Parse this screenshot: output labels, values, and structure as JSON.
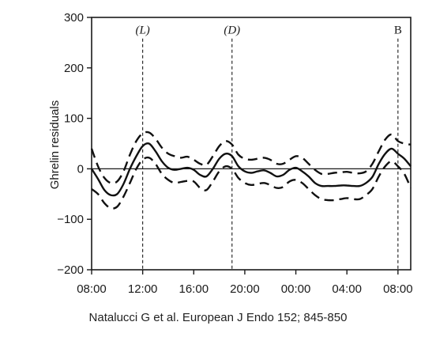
{
  "chart_data": {
    "type": "line",
    "ylabel": "Ghrelin residuals",
    "ylim": [
      -200,
      300
    ],
    "yticks": [
      "300",
      "200",
      "100",
      "0",
      "−100",
      "−200"
    ],
    "ytick_values": [
      300,
      200,
      100,
      0,
      -100,
      -200
    ],
    "xlim": [
      8,
      33
    ],
    "xticks": [
      "08:00",
      "12:00",
      "16:00",
      "20:00",
      "00:00",
      "04:00",
      "08:00"
    ],
    "xtick_values": [
      8,
      12,
      16,
      20,
      24,
      28,
      32
    ],
    "grid": false,
    "zero_line": true,
    "markers": [
      {
        "label": "(L)",
        "x": 12,
        "italic": true
      },
      {
        "label": "(D)",
        "x": 19,
        "italic": true
      },
      {
        "label": "B",
        "x": 32,
        "italic": false
      }
    ],
    "series": [
      {
        "style": "solid",
        "x": [
          8,
          8.5,
          9,
          9.5,
          10,
          10.5,
          11,
          11.5,
          12,
          12.5,
          13,
          13.5,
          14,
          14.5,
          15,
          15.5,
          16,
          16.5,
          17,
          17.5,
          18,
          18.5,
          19,
          19.5,
          20,
          20.5,
          21,
          21.5,
          22,
          22.5,
          23,
          23.5,
          24,
          24.5,
          25,
          25.5,
          26,
          26.5,
          27,
          27.5,
          28,
          28.5,
          29,
          29.5,
          30,
          30.5,
          31,
          31.5,
          32,
          32.5,
          33
        ],
        "values": [
          0,
          -20,
          -42,
          -52,
          -50,
          -30,
          0,
          25,
          45,
          50,
          35,
          15,
          2,
          -2,
          0,
          2,
          -2,
          -12,
          -15,
          0,
          20,
          30,
          25,
          5,
          -5,
          -8,
          -5,
          -3,
          -8,
          -15,
          -12,
          -2,
          2,
          -5,
          -15,
          -28,
          -34,
          -34,
          -34,
          -33,
          -33,
          -34,
          -34,
          -28,
          -16,
          10,
          30,
          40,
          30,
          20,
          5
        ]
      },
      {
        "style": "dashed",
        "x": [
          8,
          8.5,
          9,
          9.5,
          10,
          10.5,
          11,
          11.5,
          12,
          12.5,
          13,
          13.5,
          14,
          14.5,
          15,
          15.5,
          16,
          16.5,
          17,
          17.5,
          18,
          18.5,
          19,
          19.5,
          20,
          20.5,
          21,
          21.5,
          22,
          22.5,
          23,
          23.5,
          24,
          24.5,
          25,
          25.5,
          26,
          26.5,
          27,
          27.5,
          28,
          28.5,
          29,
          29.5,
          30,
          30.5,
          31,
          31.5,
          32,
          32.5,
          33
        ],
        "values": [
          40,
          5,
          -18,
          -28,
          -25,
          -5,
          28,
          55,
          70,
          72,
          60,
          42,
          30,
          25,
          22,
          24,
          18,
          10,
          8,
          25,
          45,
          55,
          48,
          28,
          20,
          18,
          20,
          22,
          18,
          10,
          10,
          18,
          25,
          22,
          10,
          -2,
          -10,
          -10,
          -8,
          -7,
          -6,
          -8,
          -9,
          -5,
          10,
          35,
          58,
          68,
          55,
          50,
          48
        ]
      },
      {
        "style": "dashed",
        "x": [
          8,
          8.5,
          9,
          9.5,
          10,
          10.5,
          11,
          11.5,
          12,
          12.5,
          13,
          13.5,
          14,
          14.5,
          15,
          15.5,
          16,
          16.5,
          17,
          17.5,
          18,
          18.5,
          19,
          19.5,
          20,
          20.5,
          21,
          21.5,
          22,
          22.5,
          23,
          23.5,
          24,
          24.5,
          25,
          25.5,
          26,
          26.5,
          27,
          27.5,
          28,
          28.5,
          29,
          29.5,
          30,
          30.5,
          31,
          31.5,
          32,
          32.5,
          33
        ],
        "values": [
          -40,
          -50,
          -68,
          -78,
          -75,
          -55,
          -28,
          0,
          18,
          22,
          10,
          -10,
          -22,
          -28,
          -26,
          -24,
          -25,
          -38,
          -42,
          -25,
          -5,
          5,
          0,
          -18,
          -28,
          -32,
          -30,
          -28,
          -32,
          -38,
          -36,
          -25,
          -22,
          -28,
          -40,
          -52,
          -60,
          -62,
          -62,
          -60,
          -58,
          -60,
          -60,
          -52,
          -40,
          -15,
          5,
          15,
          5,
          -10,
          -38
        ]
      }
    ]
  },
  "citation": "Natalucci G et al. European J Endo 152; 845-850"
}
